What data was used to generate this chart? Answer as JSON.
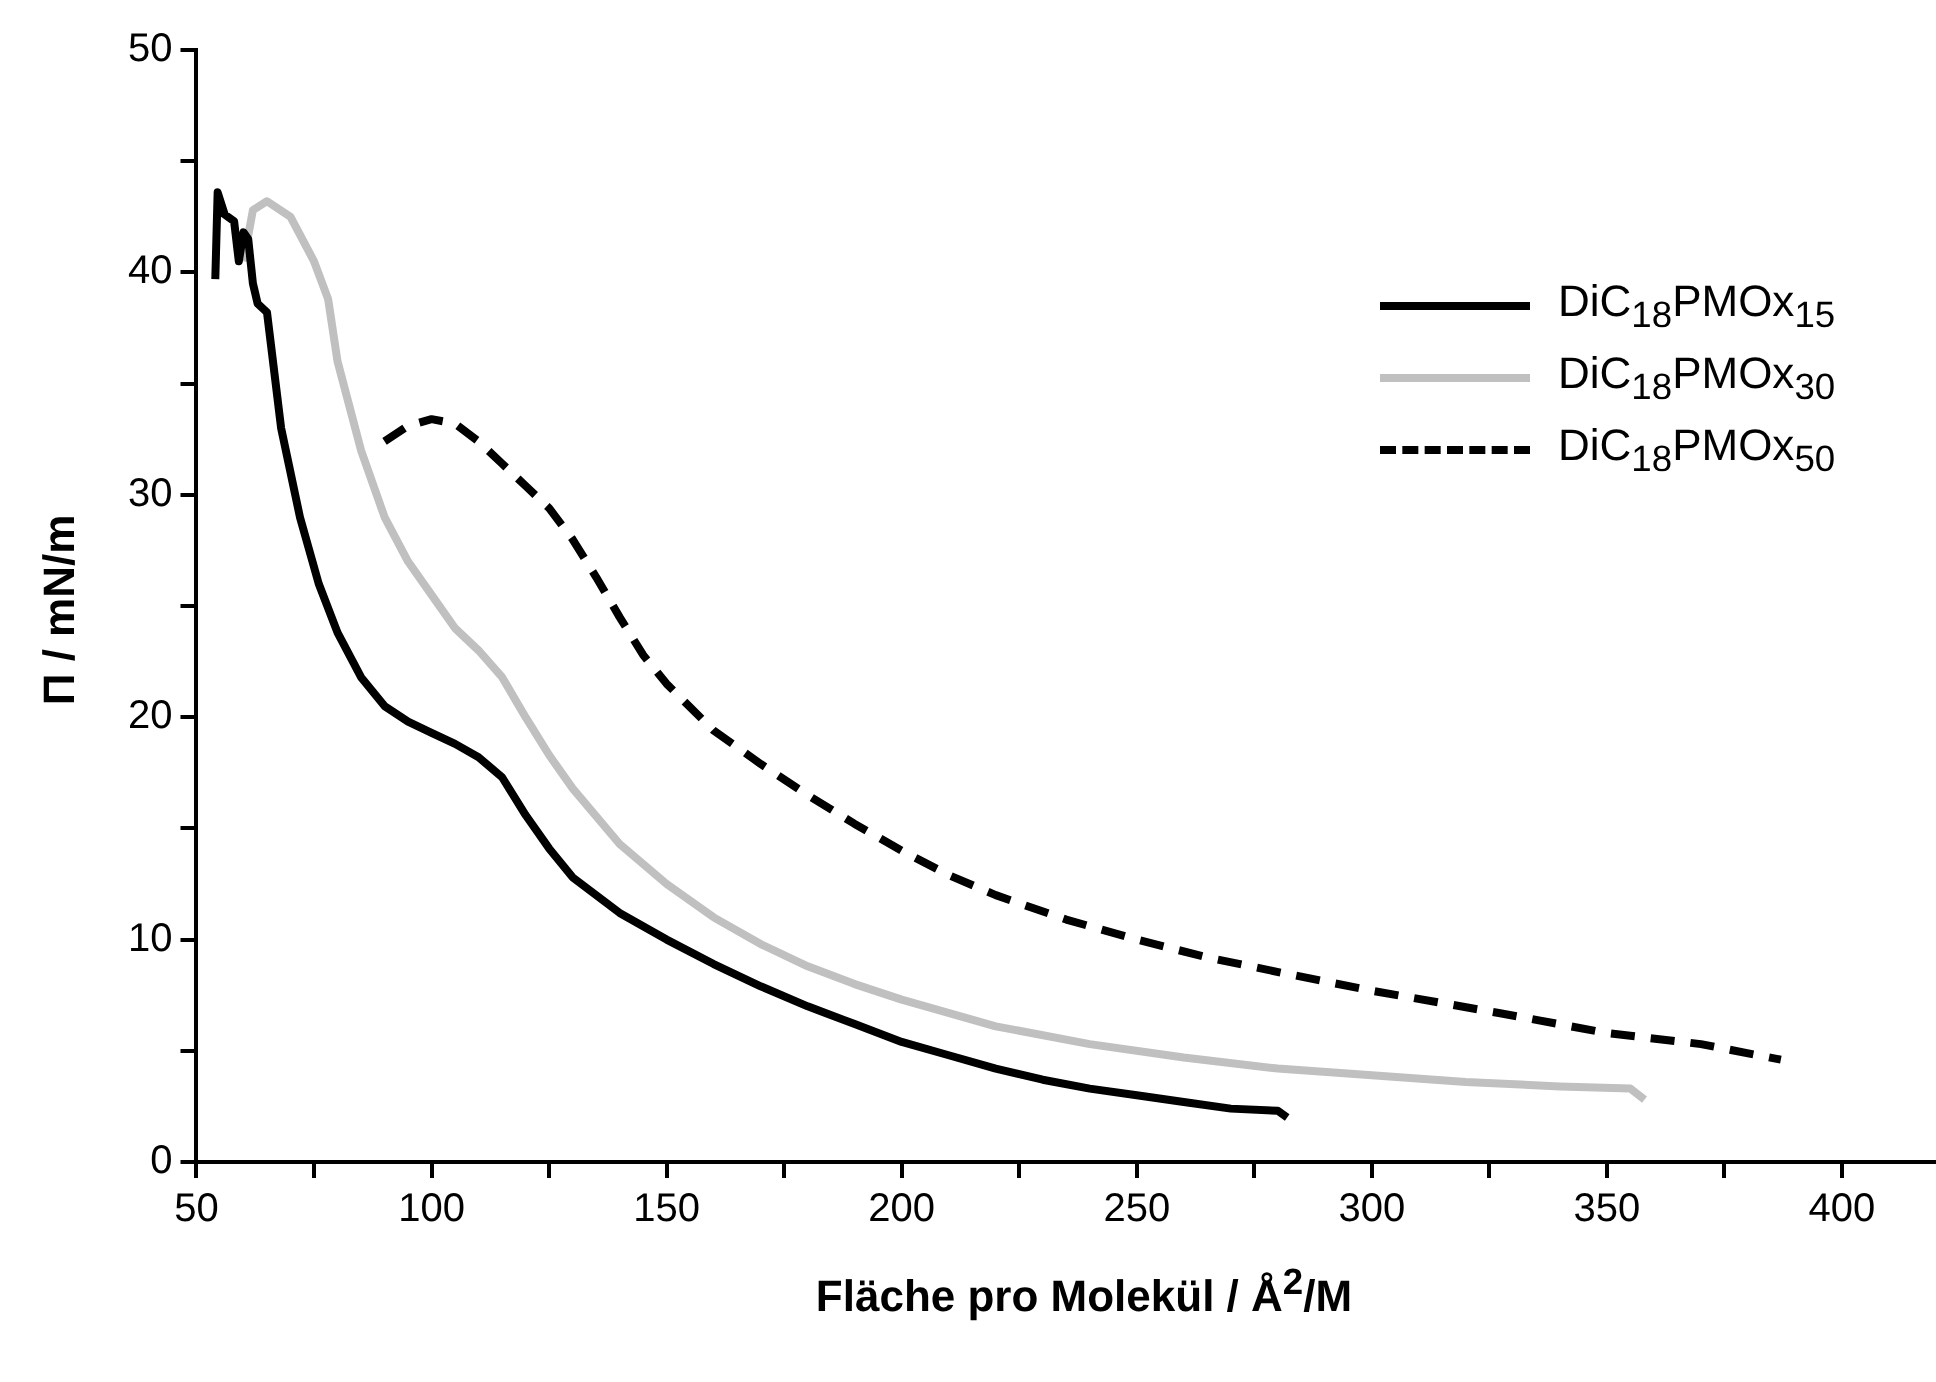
{
  "chart_data": {
    "type": "line",
    "xlabel": "Fläche pro Molekül / Å$^{2}$/M",
    "ylabel": "Π / mN/m",
    "xlim": [
      50,
      420
    ],
    "ylim": [
      0,
      50
    ],
    "xticks": [
      50,
      {
        "value": 75,
        "label": null
      },
      100,
      {
        "value": 125,
        "label": null
      },
      150,
      {
        "value": 175,
        "label": null
      },
      200,
      {
        "value": 225,
        "label": null
      },
      250,
      {
        "value": 275,
        "label": null
      },
      300,
      {
        "value": 325,
        "label": null
      },
      350,
      {
        "value": 375,
        "label": null
      },
      400
    ],
    "yticks": [
      0,
      {
        "value": 5,
        "label": null
      },
      10,
      {
        "value": 15,
        "label": null
      },
      20,
      {
        "value": 25,
        "label": null
      },
      30,
      {
        "value": 35,
        "label": null
      },
      40,
      {
        "value": 45,
        "label": null
      },
      50
    ],
    "legend": "top right",
    "marker": "none",
    "series": [
      {
        "name": "DiC$_{18}$PMOx$_{15}$",
        "color": "#000000",
        "line_style": "solid",
        "x": [
          54,
          54.5,
          56,
          58,
          59,
          60,
          61,
          62,
          63,
          65,
          68,
          72,
          76,
          80,
          85,
          90,
          95,
          100,
          105,
          110,
          115,
          120,
          125,
          130,
          140,
          150,
          160,
          170,
          180,
          190,
          200,
          210,
          220,
          230,
          240,
          250,
          260,
          270,
          280,
          282
        ],
        "values": [
          39.7,
          43.6,
          42.6,
          42.3,
          40.5,
          41.8,
          41.5,
          39.5,
          38.6,
          38.2,
          33,
          29,
          26,
          23.8,
          21.8,
          20.5,
          19.8,
          19.3,
          18.8,
          18.2,
          17.3,
          15.6,
          14.1,
          12.8,
          11.2,
          10,
          8.9,
          7.9,
          7,
          6.2,
          5.4,
          4.8,
          4.2,
          3.7,
          3.3,
          3,
          2.7,
          2.4,
          2.3,
          2.0
        ]
      },
      {
        "name": "DiC$_{18}$PMOx$_{30}$",
        "color": "#c0c0c0",
        "line_style": "solid",
        "x": [
          60,
          62,
          65,
          70,
          75,
          78,
          80,
          85,
          90,
          95,
          100,
          105,
          110,
          115,
          120,
          125,
          130,
          140,
          150,
          160,
          170,
          180,
          190,
          200,
          220,
          240,
          260,
          280,
          300,
          320,
          340,
          355,
          358
        ],
        "values": [
          40.5,
          42.8,
          43.2,
          42.5,
          40.5,
          38.8,
          36,
          32,
          29,
          27,
          25.5,
          24,
          23,
          21.8,
          20,
          18.3,
          16.8,
          14.3,
          12.5,
          11,
          9.8,
          8.8,
          8,
          7.3,
          6.1,
          5.3,
          4.7,
          4.2,
          3.9,
          3.6,
          3.4,
          3.3,
          2.8
        ]
      },
      {
        "name": "DiC$_{18}$PMOx$_{50}$",
        "color": "#000000",
        "line_style": "dashed",
        "x": [
          90,
          95,
          100,
          105,
          110,
          115,
          120,
          125,
          130,
          135,
          140,
          145,
          150,
          160,
          170,
          180,
          190,
          200,
          210,
          220,
          235,
          250,
          265,
          281,
          300,
          327,
          350,
          370,
          387
        ],
        "values": [
          32.4,
          33.1,
          33.4,
          33.2,
          32.4,
          31.4,
          30.4,
          29.4,
          28,
          26.3,
          24.5,
          22.8,
          21.5,
          19.4,
          17.9,
          16.5,
          15.2,
          14,
          12.9,
          12,
          10.9,
          10,
          9.2,
          8.5,
          7.7,
          6.7,
          5.8,
          5.3,
          4.6
        ]
      }
    ]
  }
}
